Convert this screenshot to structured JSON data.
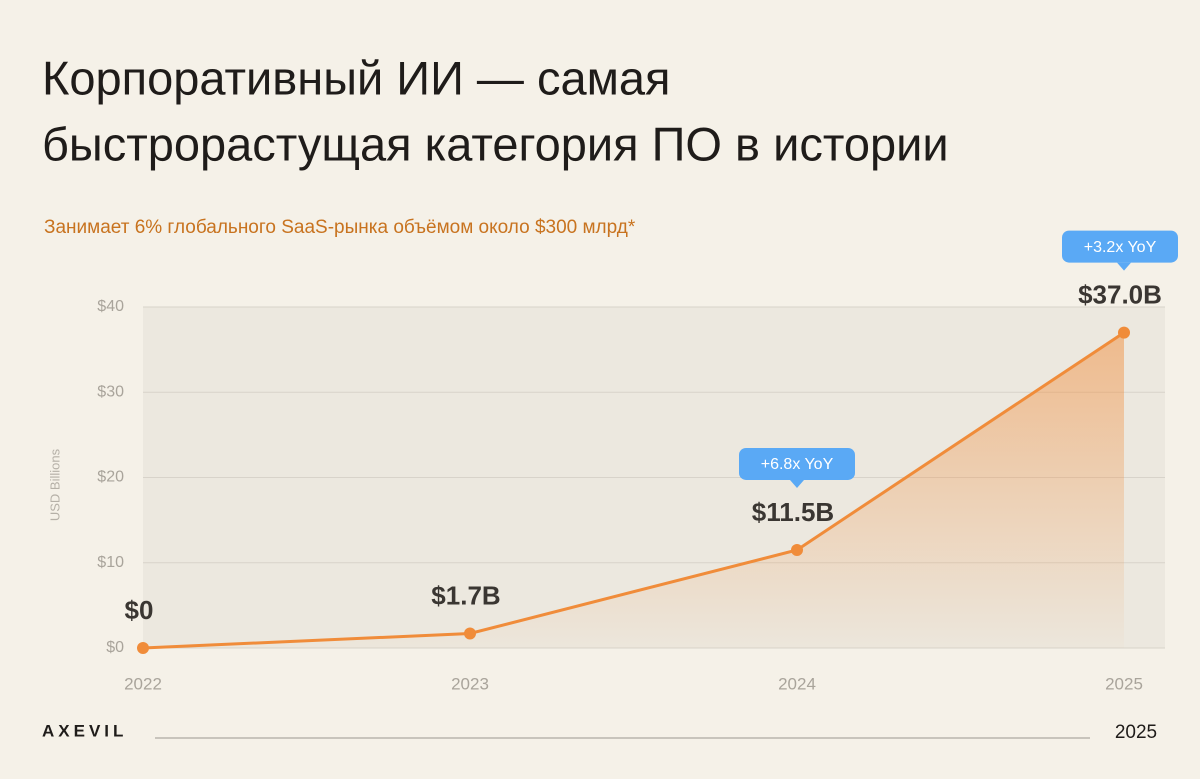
{
  "chart_data": {
    "type": "line",
    "title": [
      "Корпоративный ИИ — самая",
      "быстрорастущая категория ПО в истории"
    ],
    "subtitle": "Занимает 6% глобального SaaS-рынка объёмом около $300 млрд*",
    "y_label": "USD Billions",
    "categories": [
      "2022",
      "2023",
      "2024",
      "2025"
    ],
    "values": [
      0,
      1.7,
      11.5,
      37.0
    ],
    "value_labels": [
      "$0",
      "$1.7B",
      "$11.5B",
      "$37.0B"
    ],
    "value_notes": [
      null,
      null,
      "+6.8x YoY",
      "+3.2x YoY"
    ],
    "color": "#f08c3a",
    "note_color": "#5aa9f5",
    "ylim": [
      0,
      40
    ],
    "yticks": [
      {
        "value": 0,
        "label": "$0"
      },
      {
        "value": 10,
        "label": "$10"
      },
      {
        "value": 20,
        "label": "$20"
      },
      {
        "value": 30,
        "label": "$30"
      },
      {
        "value": 40,
        "label": "$40"
      }
    ],
    "grid": true
  },
  "footer": {
    "brand": "AXEVIL",
    "year": "2025"
  }
}
